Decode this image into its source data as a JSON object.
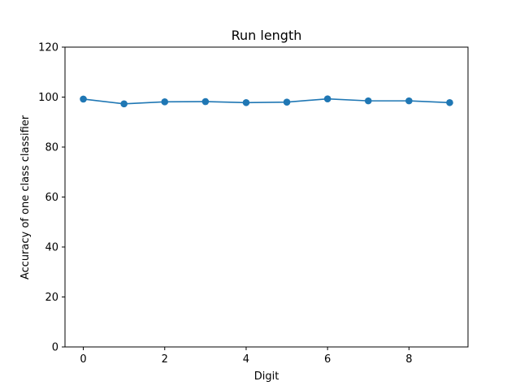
{
  "chart_data": {
    "type": "line",
    "title": "Run length",
    "xlabel": "Digit",
    "ylabel": "Accuracy of one class classifier",
    "x": [
      0,
      1,
      2,
      3,
      4,
      5,
      6,
      7,
      8,
      9
    ],
    "series": [
      {
        "values": [
          99.2,
          97.3,
          98.1,
          98.2,
          97.8,
          98.0,
          99.3,
          98.5,
          98.5,
          97.8
        ],
        "color": "#1f77b4",
        "marker": "circle"
      }
    ],
    "xlim": [
      -0.45,
      9.45
    ],
    "ylim": [
      0,
      120
    ],
    "xticks": [
      0,
      2,
      4,
      6,
      8
    ],
    "yticks": [
      0,
      20,
      40,
      60,
      80,
      100,
      120
    ],
    "grid": false
  }
}
